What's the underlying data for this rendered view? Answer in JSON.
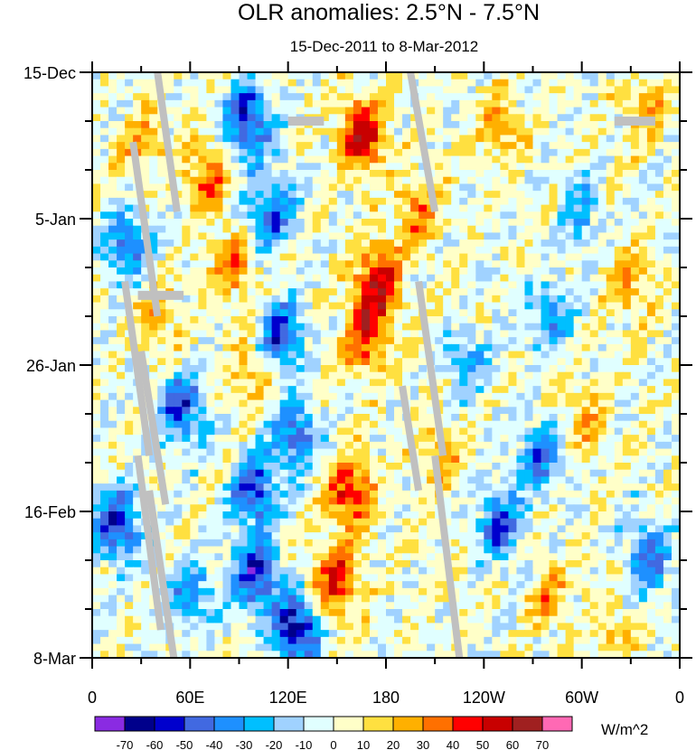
{
  "chart_data": {
    "type": "heatmap",
    "title": "OLR anomalies: 2.5°N - 7.5°N",
    "subtitle": "15-Dec-2011 to 8-Mar-2012",
    "x_ticks": [
      {
        "lon": 0,
        "label": "0"
      },
      {
        "lon": 60,
        "label": "60E"
      },
      {
        "lon": 120,
        "label": "120E"
      },
      {
        "lon": 180,
        "label": "180"
      },
      {
        "lon": 240,
        "label": "120W"
      },
      {
        "lon": 300,
        "label": "60W"
      },
      {
        "lon": 360,
        "label": "0"
      }
    ],
    "y_ticks": [
      {
        "day": 0,
        "label": "15-Dec"
      },
      {
        "day": 21,
        "label": "5-Jan"
      },
      {
        "day": 42,
        "label": "26-Jan"
      },
      {
        "day": 63,
        "label": "16-Feb"
      },
      {
        "day": 84,
        "label": "8-Mar"
      }
    ],
    "xlim": [
      0,
      360
    ],
    "ylim_days": [
      0,
      84
    ],
    "colorbar": {
      "units": "W/m^2",
      "levels": [
        "-70",
        "-60",
        "-50",
        "-40",
        "-30",
        "-20",
        "-10",
        "0",
        "10",
        "20",
        "30",
        "40",
        "50",
        "60",
        "70"
      ],
      "colors": [
        "#8a2be2",
        "#00008b",
        "#0000cd",
        "#4169e1",
        "#1e90ff",
        "#00bfff",
        "#a0d2ff",
        "#e0ffff",
        "#ffffc8",
        "#ffe040",
        "#ffb000",
        "#ff7000",
        "#ff0000",
        "#c80000",
        "#a02020",
        "#ff69b4"
      ]
    },
    "anomaly_centers": [
      {
        "lon": 165,
        "day": 9,
        "value": 55
      },
      {
        "lon": 175,
        "day": 30,
        "value": 55
      },
      {
        "lon": 168,
        "day": 38,
        "value": 45
      },
      {
        "lon": 158,
        "day": 60,
        "value": 50
      },
      {
        "lon": 150,
        "day": 73,
        "value": 50
      },
      {
        "lon": 200,
        "day": 20,
        "value": 30
      },
      {
        "lon": 215,
        "day": 55,
        "value": 25
      },
      {
        "lon": 250,
        "day": 8,
        "value": 25
      },
      {
        "lon": 70,
        "day": 15,
        "value": 35
      },
      {
        "lon": 85,
        "day": 28,
        "value": 30
      },
      {
        "lon": 30,
        "day": 10,
        "value": 25
      },
      {
        "lon": 340,
        "day": 5,
        "value": 20
      },
      {
        "lon": 330,
        "day": 30,
        "value": 25
      },
      {
        "lon": 300,
        "day": 50,
        "value": 20
      },
      {
        "lon": 100,
        "day": 42,
        "value": 25
      },
      {
        "lon": 40,
        "day": 35,
        "value": 20
      },
      {
        "lon": 280,
        "day": 75,
        "value": 25
      },
      {
        "lon": 320,
        "day": 80,
        "value": 20
      },
      {
        "lon": 95,
        "day": 7,
        "value": -60
      },
      {
        "lon": 110,
        "day": 20,
        "value": -45
      },
      {
        "lon": 115,
        "day": 38,
        "value": -55
      },
      {
        "lon": 125,
        "day": 52,
        "value": -45
      },
      {
        "lon": 100,
        "day": 60,
        "value": -50
      },
      {
        "lon": 100,
        "day": 72,
        "value": -55
      },
      {
        "lon": 125,
        "day": 80,
        "value": -65
      },
      {
        "lon": 15,
        "day": 65,
        "value": -55
      },
      {
        "lon": 55,
        "day": 48,
        "value": -50
      },
      {
        "lon": 20,
        "day": 25,
        "value": -40
      },
      {
        "lon": 250,
        "day": 65,
        "value": -45
      },
      {
        "lon": 275,
        "day": 55,
        "value": -40
      },
      {
        "lon": 340,
        "day": 70,
        "value": -40
      },
      {
        "lon": 280,
        "day": 35,
        "value": -30
      },
      {
        "lon": 230,
        "day": 42,
        "value": -25
      },
      {
        "lon": 300,
        "day": 20,
        "value": -25
      },
      {
        "lon": 60,
        "day": 75,
        "value": -35
      }
    ]
  }
}
